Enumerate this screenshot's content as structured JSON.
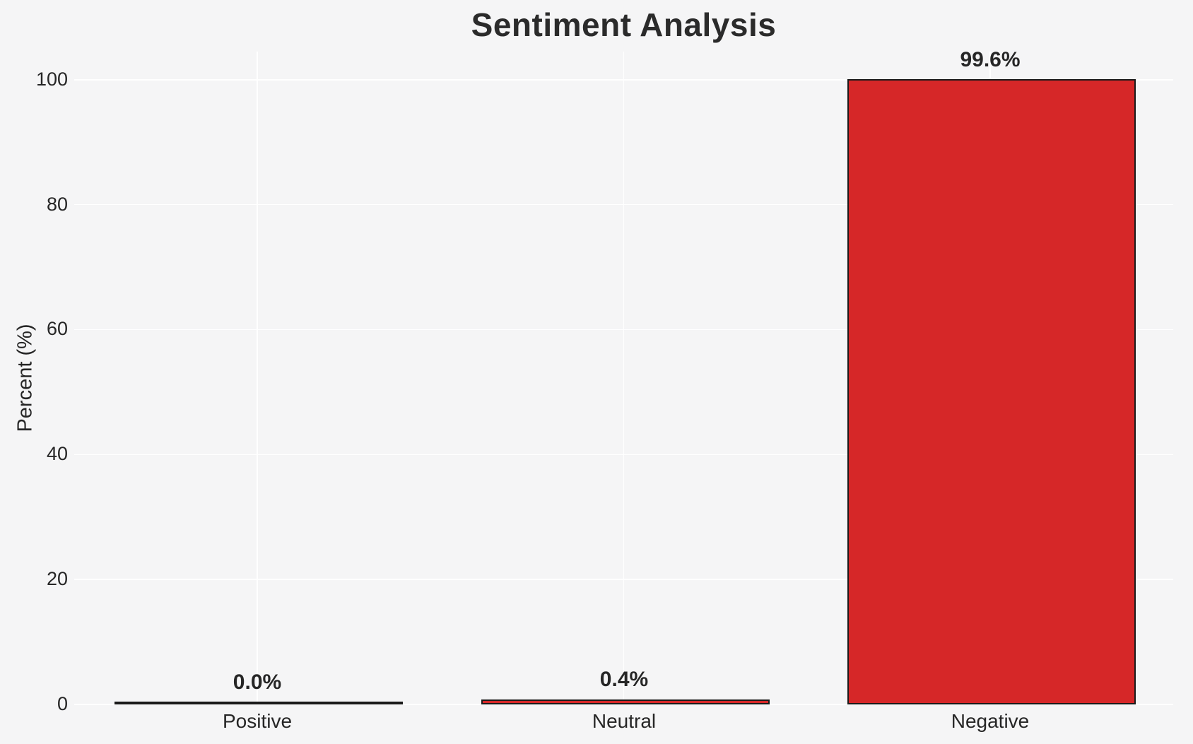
{
  "chart_data": {
    "type": "bar",
    "title": "Sentiment Analysis",
    "ylabel": "Percent (%)",
    "xlabel": "",
    "categories": [
      "Positive",
      "Neutral",
      "Negative"
    ],
    "values": [
      0.0,
      0.4,
      99.6
    ],
    "bar_labels": [
      "0.0%",
      "0.4%",
      "99.6%"
    ],
    "yticks": [
      0,
      20,
      40,
      60,
      80,
      100
    ],
    "ylim": [
      0,
      104.5
    ],
    "grid": true,
    "legend": false,
    "colors": {
      "bar_fill": "#d62728",
      "bar_edge": "#1a1a1a",
      "background": "#f5f5f6",
      "gridline": "#ffffff",
      "text": "#262626"
    }
  }
}
